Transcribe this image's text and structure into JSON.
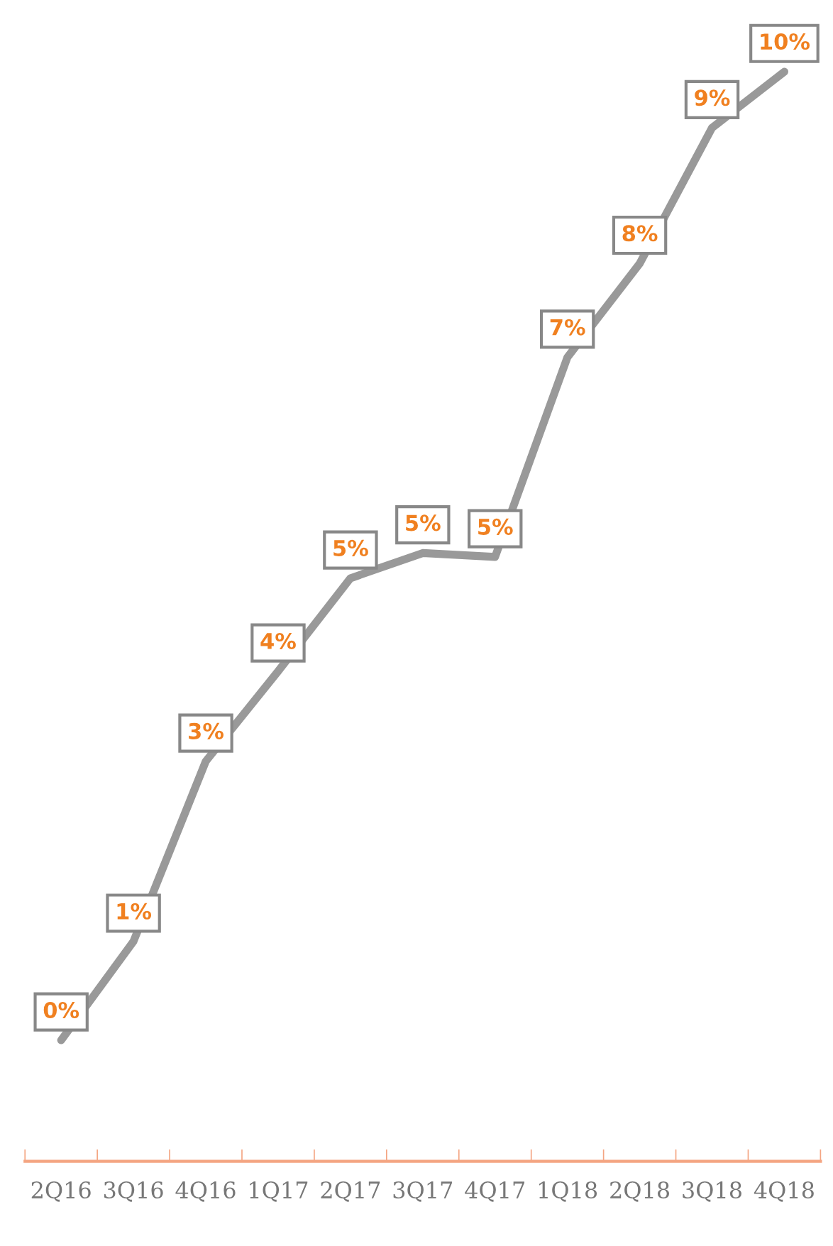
{
  "chart_data": {
    "type": "line",
    "categories": [
      "2Q16",
      "3Q16",
      "4Q16",
      "1Q17",
      "2Q17",
      "3Q17",
      "4Q17",
      "1Q18",
      "2Q18",
      "3Q18",
      "4Q18"
    ],
    "series": [
      {
        "color": "#999999",
        "values": [
          0,
          1.02,
          2.88,
          3.81,
          4.77,
          5.03,
          4.99,
          7.05,
          8.02,
          9.42,
          10
        ],
        "value_labels": [
          "0%",
          "1%",
          "3%",
          "4%",
          "5%",
          "5%",
          "5%",
          "7%",
          "8%",
          "9%",
          "10%"
        ]
      }
    ],
    "marker": "none",
    "line_style": "solid",
    "grid": false,
    "legend": false,
    "tick_labels": "x"
  }
}
